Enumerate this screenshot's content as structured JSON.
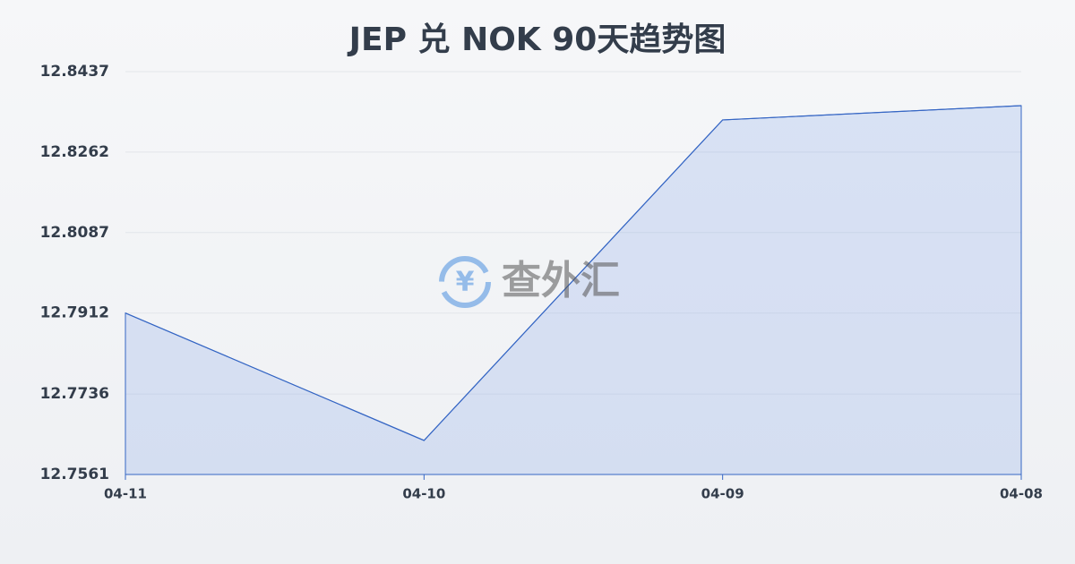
{
  "chart_data": {
    "type": "area",
    "title": "JEP 兑 NOK 90天趋势图",
    "watermark": "查外汇",
    "categories": [
      "04-11",
      "04-10",
      "04-09",
      "04-08"
    ],
    "values": [
      12.7912,
      12.7635,
      12.8332,
      12.8363
    ],
    "color": "#3566c4",
    "fill": "rgba(120,155,230,0.22)",
    "ylim": [
      12.7561,
      12.8437
    ],
    "yticks": [
      12.7561,
      12.7736,
      12.7912,
      12.8087,
      12.8262,
      12.8437
    ],
    "grid": true
  }
}
